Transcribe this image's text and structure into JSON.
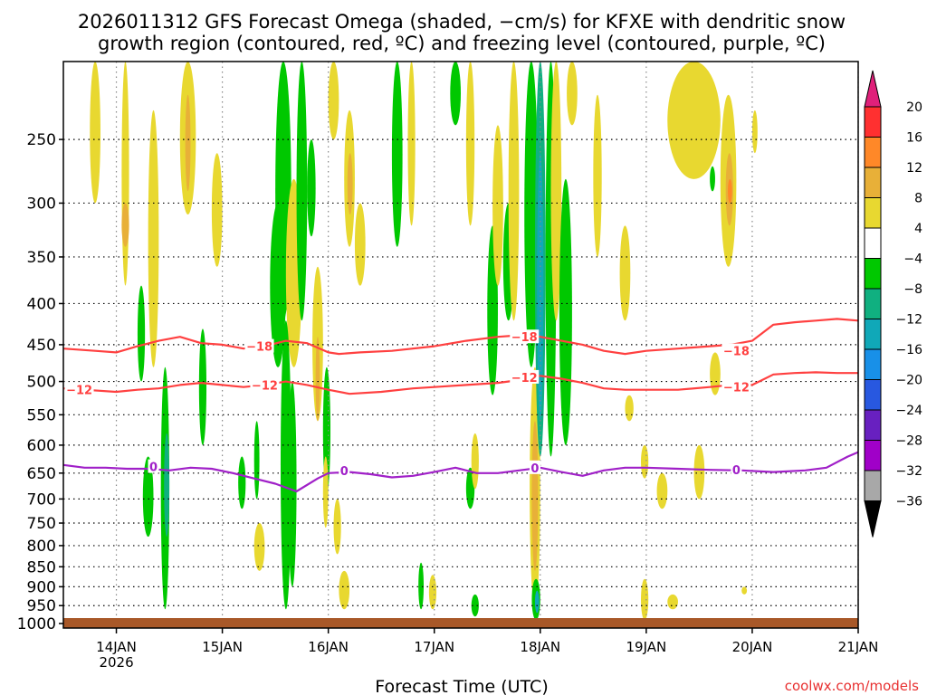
{
  "chart_data": {
    "type": "heatmap",
    "title_line1": "2026011312 GFS Forecast Omega (shaded, −cm/s) for KFXE with dendritic snow",
    "title_line2": "growth region (contoured, red, ºC) and freezing level (contoured, purple, ºC)",
    "xlabel": "Forecast Time (UTC)",
    "credit": "coolwx.com/models",
    "x_ticks": [
      {
        "label": "14JAN",
        "sub": "2026",
        "day": 1
      },
      {
        "label": "15JAN",
        "sub": "",
        "day": 2
      },
      {
        "label": "16JAN",
        "sub": "",
        "day": 3
      },
      {
        "label": "17JAN",
        "sub": "",
        "day": 4
      },
      {
        "label": "18JAN",
        "sub": "",
        "day": 5
      },
      {
        "label": "19JAN",
        "sub": "",
        "day": 6
      },
      {
        "label": "20JAN",
        "sub": "",
        "day": 7
      },
      {
        "label": "21JAN",
        "sub": "",
        "day": 8
      }
    ],
    "x_range_days": [
      0.5,
      8.0
    ],
    "y_ticks": [
      "250",
      "300",
      "350",
      "400",
      "450",
      "500",
      "550",
      "600",
      "650",
      "700",
      "750",
      "800",
      "850",
      "900",
      "950",
      "1000"
    ],
    "y_levels": [
      250,
      300,
      350,
      400,
      450,
      500,
      550,
      600,
      650,
      700,
      750,
      800,
      850,
      900,
      950,
      1000
    ],
    "y_range_hpa": [
      200,
      1013
    ],
    "colorbar": {
      "labels": [
        "20",
        "16",
        "12",
        "8",
        "4",
        "−4",
        "−8",
        "−12",
        "−16",
        "−20",
        "−24",
        "−28",
        "−32",
        "−36"
      ],
      "colors": [
        "#ff3030",
        "#ff8828",
        "#e8b038",
        "#e8d830",
        "#ffffff",
        "#00c800",
        "#10b080",
        "#10a8b8",
        "#1890e8",
        "#2858e0",
        "#6820c0",
        "#a000c8",
        "#a8a8a8"
      ],
      "top_arrow": "#e0207a",
      "bottom_arrow": "#000000"
    },
    "series": [
      {
        "name": "-18",
        "color": "#ff4040",
        "label": "−18",
        "x": [
          0.5,
          0.8,
          1.0,
          1.2,
          1.4,
          1.6,
          1.8,
          2.0,
          2.2,
          2.4,
          2.6,
          2.8,
          3.0,
          3.1,
          3.3,
          3.6,
          4.0,
          4.3,
          4.6,
          4.8,
          5.0,
          5.2,
          5.4,
          5.6,
          5.8,
          6.0,
          6.3,
          6.6,
          6.8,
          7.0,
          7.2,
          7.4,
          7.6,
          7.8,
          8.0
        ],
        "y": [
          455,
          458,
          460,
          452,
          445,
          440,
          448,
          450,
          455,
          452,
          445,
          448,
          460,
          462,
          460,
          458,
          452,
          445,
          440,
          438,
          440,
          445,
          450,
          458,
          462,
          458,
          455,
          452,
          450,
          445,
          425,
          422,
          420,
          418,
          420
        ]
      },
      {
        "name": "-12",
        "color": "#ff4040",
        "label": "−12",
        "x": [
          0.5,
          0.7,
          1.0,
          1.2,
          1.4,
          1.6,
          1.8,
          2.0,
          2.2,
          2.4,
          2.6,
          2.8,
          3.0,
          3.2,
          3.5,
          3.8,
          4.0,
          4.3,
          4.6,
          4.8,
          5.0,
          5.2,
          5.4,
          5.6,
          5.8,
          6.0,
          6.3,
          6.6,
          6.8,
          7.0,
          7.2,
          7.4,
          7.6,
          7.8,
          8.0
        ],
        "y": [
          510,
          512,
          515,
          512,
          510,
          505,
          502,
          505,
          508,
          505,
          500,
          505,
          512,
          518,
          515,
          510,
          508,
          505,
          502,
          498,
          492,
          496,
          502,
          510,
          512,
          512,
          512,
          508,
          505,
          505,
          490,
          488,
          487,
          488,
          488
        ]
      },
      {
        "name": "0",
        "color": "#a020c8",
        "label": "0",
        "x": [
          0.5,
          0.7,
          0.9,
          1.1,
          1.3,
          1.5,
          1.7,
          1.9,
          2.1,
          2.3,
          2.5,
          2.7,
          2.9,
          3.0,
          3.2,
          3.4,
          3.6,
          3.8,
          4.0,
          4.2,
          4.4,
          4.6,
          4.8,
          5.0,
          5.2,
          5.4,
          5.6,
          5.8,
          6.0,
          6.3,
          6.6,
          6.9,
          7.2,
          7.5,
          7.7,
          7.9,
          8.0
        ],
        "y": [
          635,
          640,
          640,
          642,
          642,
          645,
          640,
          642,
          650,
          660,
          670,
          685,
          660,
          650,
          648,
          652,
          658,
          655,
          648,
          640,
          650,
          650,
          645,
          640,
          648,
          655,
          645,
          640,
          640,
          642,
          644,
          645,
          648,
          645,
          640,
          620,
          612
        ]
      }
    ],
    "contour_labels": [
      {
        "text": "−18",
        "x": 2.35,
        "y": 452
      },
      {
        "text": "−18",
        "x": 4.85,
        "y": 440
      },
      {
        "text": "−18",
        "x": 6.85,
        "y": 458
      },
      {
        "text": "−12",
        "x": 0.65,
        "y": 512
      },
      {
        "text": "−12",
        "x": 2.4,
        "y": 505
      },
      {
        "text": "−12",
        "x": 4.85,
        "y": 494
      },
      {
        "text": "−12",
        "x": 6.85,
        "y": 508
      },
      {
        "text": "0",
        "x": 1.35,
        "y": 638
      },
      {
        "text": "0",
        "x": 3.15,
        "y": 645
      },
      {
        "text": "0",
        "x": 4.95,
        "y": 640
      },
      {
        "text": "0",
        "x": 6.85,
        "y": 644
      }
    ],
    "shaded_regions": [
      {
        "x0": 1.05,
        "x1": 1.12,
        "p0": 200,
        "p1": 380,
        "v": 4
      },
      {
        "x0": 1.05,
        "x1": 1.12,
        "p0": 300,
        "p1": 340,
        "v": 8
      },
      {
        "x0": 0.75,
        "x1": 0.85,
        "p0": 200,
        "p1": 300,
        "v": 4
      },
      {
        "x0": 1.3,
        "x1": 1.4,
        "p0": 230,
        "p1": 480,
        "v": 4
      },
      {
        "x0": 1.2,
        "x1": 1.27,
        "p0": 380,
        "p1": 500,
        "v": -4
      },
      {
        "x0": 1.42,
        "x1": 1.5,
        "p0": 480,
        "p1": 960,
        "v": -4
      },
      {
        "x0": 1.45,
        "x1": 1.5,
        "p0": 580,
        "p1": 780,
        "v": -8
      },
      {
        "x0": 1.25,
        "x1": 1.35,
        "p0": 620,
        "p1": 780,
        "v": -4
      },
      {
        "x0": 1.6,
        "x1": 1.75,
        "p0": 200,
        "p1": 310,
        "v": 4
      },
      {
        "x0": 1.65,
        "x1": 1.7,
        "p0": 220,
        "p1": 290,
        "v": 8
      },
      {
        "x0": 1.78,
        "x1": 1.85,
        "p0": 430,
        "p1": 600,
        "v": -4
      },
      {
        "x0": 1.9,
        "x1": 2.0,
        "p0": 260,
        "p1": 360,
        "v": 4
      },
      {
        "x0": 2.5,
        "x1": 2.65,
        "p0": 200,
        "p1": 420,
        "v": -4
      },
      {
        "x0": 2.45,
        "x1": 2.6,
        "p0": 300,
        "p1": 480,
        "v": -4
      },
      {
        "x0": 2.6,
        "x1": 2.75,
        "p0": 280,
        "p1": 480,
        "v": 4
      },
      {
        "x0": 2.3,
        "x1": 2.35,
        "p0": 560,
        "p1": 700,
        "v": -4
      },
      {
        "x0": 2.15,
        "x1": 2.22,
        "p0": 620,
        "p1": 720,
        "v": -4
      },
      {
        "x0": 2.3,
        "x1": 2.4,
        "p0": 750,
        "p1": 860,
        "v": 4
      },
      {
        "x0": 2.55,
        "x1": 2.65,
        "p0": 420,
        "p1": 960,
        "v": -4
      },
      {
        "x0": 2.62,
        "x1": 2.7,
        "p0": 500,
        "p1": 900,
        "v": -4
      },
      {
        "x0": 2.7,
        "x1": 2.8,
        "p0": 200,
        "p1": 420,
        "v": -4
      },
      {
        "x0": 2.8,
        "x1": 2.88,
        "p0": 250,
        "p1": 330,
        "v": -4
      },
      {
        "x0": 2.85,
        "x1": 2.95,
        "p0": 360,
        "p1": 560,
        "v": 4
      },
      {
        "x0": 2.88,
        "x1": 2.92,
        "p0": 440,
        "p1": 560,
        "v": 8
      },
      {
        "x0": 2.95,
        "x1": 3.02,
        "p0": 480,
        "p1": 690,
        "v": -4
      },
      {
        "x0": 2.95,
        "x1": 3.0,
        "p0": 620,
        "p1": 760,
        "v": 4
      },
      {
        "x0": 3.05,
        "x1": 3.12,
        "p0": 700,
        "p1": 820,
        "v": 4
      },
      {
        "x0": 3.1,
        "x1": 3.2,
        "p0": 860,
        "p1": 960,
        "v": 4
      },
      {
        "x0": 3.15,
        "x1": 3.25,
        "p0": 230,
        "p1": 340,
        "v": 4
      },
      {
        "x0": 3.18,
        "x1": 3.23,
        "p0": 260,
        "p1": 310,
        "v": 8
      },
      {
        "x0": 3.25,
        "x1": 3.35,
        "p0": 300,
        "p1": 380,
        "v": 4
      },
      {
        "x0": 3.0,
        "x1": 3.1,
        "p0": 200,
        "p1": 250,
        "v": 4
      },
      {
        "x0": 3.6,
        "x1": 3.7,
        "p0": 200,
        "p1": 340,
        "v": -4
      },
      {
        "x0": 3.75,
        "x1": 3.82,
        "p0": 200,
        "p1": 320,
        "v": 4
      },
      {
        "x0": 3.85,
        "x1": 3.9,
        "p0": 840,
        "p1": 960,
        "v": -4
      },
      {
        "x0": 3.95,
        "x1": 4.02,
        "p0": 870,
        "p1": 960,
        "v": 4
      },
      {
        "x0": 4.15,
        "x1": 4.25,
        "p0": 200,
        "p1": 240,
        "v": -4
      },
      {
        "x0": 4.3,
        "x1": 4.38,
        "p0": 200,
        "p1": 320,
        "v": 4
      },
      {
        "x0": 4.3,
        "x1": 4.38,
        "p0": 640,
        "p1": 720,
        "v": -4
      },
      {
        "x0": 4.35,
        "x1": 4.42,
        "p0": 580,
        "p1": 680,
        "v": 4
      },
      {
        "x0": 4.35,
        "x1": 4.42,
        "p0": 920,
        "p1": 980,
        "v": -4
      },
      {
        "x0": 4.5,
        "x1": 4.6,
        "p0": 320,
        "p1": 520,
        "v": -4
      },
      {
        "x0": 4.55,
        "x1": 4.65,
        "p0": 240,
        "p1": 380,
        "v": 4
      },
      {
        "x0": 4.65,
        "x1": 4.75,
        "p0": 300,
        "p1": 420,
        "v": -4
      },
      {
        "x0": 4.7,
        "x1": 4.8,
        "p0": 200,
        "p1": 420,
        "v": 4
      },
      {
        "x0": 4.85,
        "x1": 4.98,
        "p0": 200,
        "p1": 480,
        "v": -4
      },
      {
        "x0": 4.9,
        "x1": 5.0,
        "p0": 480,
        "p1": 960,
        "v": 4
      },
      {
        "x0": 4.92,
        "x1": 4.98,
        "p0": 560,
        "p1": 860,
        "v": 8
      },
      {
        "x0": 4.95,
        "x1": 5.05,
        "p0": 200,
        "p1": 620,
        "v": -8
      },
      {
        "x0": 4.97,
        "x1": 5.03,
        "p0": 260,
        "p1": 560,
        "v": -12
      },
      {
        "x0": 5.05,
        "x1": 5.15,
        "p0": 200,
        "p1": 620,
        "v": -4
      },
      {
        "x0": 5.1,
        "x1": 5.2,
        "p0": 200,
        "p1": 420,
        "v": 4
      },
      {
        "x0": 5.18,
        "x1": 5.3,
        "p0": 280,
        "p1": 600,
        "v": -4
      },
      {
        "x0": 5.25,
        "x1": 5.35,
        "p0": 200,
        "p1": 240,
        "v": 4
      },
      {
        "x0": 4.92,
        "x1": 5.0,
        "p0": 880,
        "p1": 990,
        "v": -4
      },
      {
        "x0": 4.95,
        "x1": 4.99,
        "p0": 910,
        "p1": 970,
        "v": -12
      },
      {
        "x0": 5.5,
        "x1": 5.58,
        "p0": 220,
        "p1": 350,
        "v": 4
      },
      {
        "x0": 5.75,
        "x1": 5.85,
        "p0": 320,
        "p1": 420,
        "v": 4
      },
      {
        "x0": 5.8,
        "x1": 5.88,
        "p0": 520,
        "p1": 560,
        "v": 4
      },
      {
        "x0": 5.95,
        "x1": 6.02,
        "p0": 600,
        "p1": 660,
        "v": 4
      },
      {
        "x0": 5.95,
        "x1": 6.02,
        "p0": 880,
        "p1": 990,
        "v": 4
      },
      {
        "x0": 6.2,
        "x1": 6.7,
        "p0": 200,
        "p1": 280,
        "v": 4
      },
      {
        "x0": 6.3,
        "x1": 6.6,
        "p0": 200,
        "p1": 240,
        "v": 4
      },
      {
        "x0": 6.7,
        "x1": 6.85,
        "p0": 220,
        "p1": 360,
        "v": 4
      },
      {
        "x0": 6.75,
        "x1": 6.82,
        "p0": 260,
        "p1": 320,
        "v": 8
      },
      {
        "x0": 6.77,
        "x1": 6.81,
        "p0": 280,
        "p1": 300,
        "v": 12
      },
      {
        "x0": 6.45,
        "x1": 6.55,
        "p0": 600,
        "p1": 700,
        "v": 4
      },
      {
        "x0": 6.6,
        "x1": 6.65,
        "p0": 270,
        "p1": 290,
        "v": -4
      },
      {
        "x0": 7.0,
        "x1": 7.05,
        "p0": 230,
        "p1": 260,
        "v": 4
      },
      {
        "x0": 6.6,
        "x1": 6.7,
        "p0": 460,
        "p1": 520,
        "v": 4
      },
      {
        "x0": 6.1,
        "x1": 6.2,
        "p0": 650,
        "p1": 720,
        "v": 4
      },
      {
        "x0": 6.2,
        "x1": 6.3,
        "p0": 920,
        "p1": 960,
        "v": 4
      },
      {
        "x0": 6.9,
        "x1": 6.95,
        "p0": 900,
        "p1": 920,
        "v": 4
      }
    ]
  }
}
